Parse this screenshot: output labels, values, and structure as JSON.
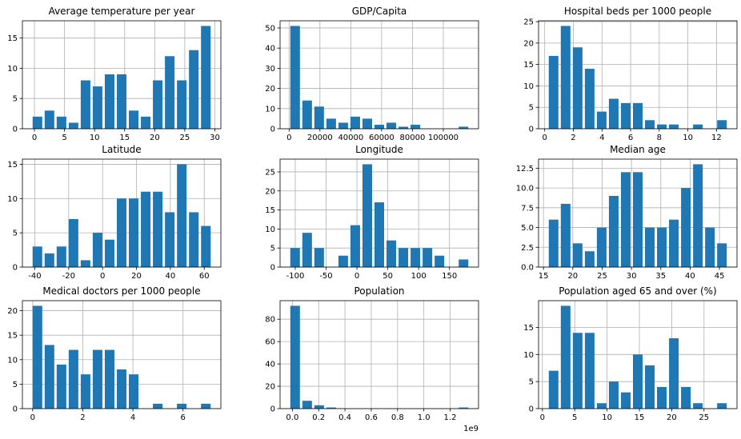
{
  "chart_data": [
    {
      "type": "histogram",
      "title": "Average temperature per year",
      "color": "#1f77b4",
      "grid": true,
      "bins": [
        -0.5,
        1.5,
        3.5,
        5.5,
        7.5,
        9.5,
        11.5,
        13.5,
        15.5,
        17.5,
        19.5,
        21.5,
        23.5,
        25.5,
        27.5,
        29.5
      ],
      "values": [
        2,
        3,
        2,
        1,
        8,
        7,
        9,
        9,
        3,
        2,
        8,
        12,
        8,
        13,
        17
      ],
      "xlim": [
        -2,
        31
      ],
      "xticks": [
        0,
        5,
        10,
        15,
        20,
        25,
        30
      ],
      "ylim": [
        0,
        17.85
      ],
      "yticks": [
        0,
        5,
        10,
        15
      ]
    },
    {
      "type": "histogram",
      "title": "GDP/Capita",
      "color": "#1f77b4",
      "grid": true,
      "bins": [
        0,
        7800,
        15600,
        23400,
        31200,
        39000,
        46800,
        54600,
        62400,
        70200,
        78000,
        85800,
        93600,
        101400,
        109200,
        117000
      ],
      "values": [
        51,
        14,
        11,
        5,
        3,
        6,
        5,
        2,
        3,
        1,
        2,
        0,
        0,
        0,
        1
      ],
      "xlim": [
        -5850,
        122850
      ],
      "xticks": [
        0,
        20000,
        40000,
        60000,
        80000,
        100000
      ],
      "ylim": [
        0,
        53.55
      ],
      "yticks": [
        0,
        10,
        20,
        30,
        40,
        50
      ]
    },
    {
      "type": "histogram",
      "title": "Hospital beds per 1000 people",
      "color": "#1f77b4",
      "grid": true,
      "bins": [
        0.2,
        1.04,
        1.88,
        2.72,
        3.56,
        4.4,
        5.24,
        6.08,
        6.92,
        7.76,
        8.6,
        9.44,
        10.28,
        11.12,
        11.96,
        12.8
      ],
      "values": [
        17,
        24,
        19,
        14,
        4,
        7,
        6,
        6,
        2,
        1,
        1,
        0,
        1,
        0,
        2
      ],
      "xlim": [
        -0.43,
        13.43
      ],
      "xticks": [
        0,
        2,
        4,
        6,
        8,
        10,
        12
      ],
      "ylim": [
        0,
        25.2
      ],
      "yticks": [
        0,
        5,
        10,
        15,
        20,
        25
      ]
    },
    {
      "type": "histogram",
      "title": "Latitude",
      "color": "#1f77b4",
      "grid": true,
      "bins": [
        -42,
        -34.9,
        -27.8,
        -20.7,
        -13.6,
        -6.5,
        0.6,
        7.7,
        14.8,
        21.9,
        29,
        36.1,
        43.2,
        50.3,
        57.4,
        64.5
      ],
      "values": [
        3,
        2,
        3,
        7,
        1,
        5,
        4,
        10,
        10,
        11,
        11,
        8,
        15,
        8,
        6
      ],
      "xlim": [
        -47.3,
        69.8
      ],
      "xticks": [
        -40,
        -20,
        0,
        20,
        40,
        60
      ],
      "ylim": [
        0,
        15.75
      ],
      "yticks": [
        0,
        5,
        10,
        15
      ]
    },
    {
      "type": "histogram",
      "title": "Longitude",
      "color": "#1f77b4",
      "grid": true,
      "bins": [
        -110,
        -90.5,
        -71,
        -51.5,
        -32,
        -12.5,
        7,
        26.5,
        46,
        65.5,
        85,
        104.5,
        124,
        143.5,
        163,
        182.5
      ],
      "values": [
        5,
        9,
        5,
        0,
        3,
        11,
        27,
        17,
        7,
        5,
        5,
        5,
        3,
        0,
        2
      ],
      "xlim": [
        -124.6,
        197.1
      ],
      "xticks": [
        -100,
        -50,
        0,
        50,
        100,
        150
      ],
      "ylim": [
        0,
        28.35
      ],
      "yticks": [
        0,
        5,
        10,
        15,
        20,
        25
      ]
    },
    {
      "type": "histogram",
      "title": "Median age",
      "color": "#1f77b4",
      "grid": true,
      "bins": [
        15.7,
        17.75,
        19.8,
        21.85,
        23.9,
        25.95,
        28,
        30.05,
        32.1,
        34.15,
        36.2,
        38.25,
        40.3,
        42.35,
        44.4,
        46.45
      ],
      "values": [
        6,
        8,
        3,
        2,
        5,
        9,
        12,
        12,
        5,
        5,
        6,
        10,
        13,
        5,
        3
      ],
      "xlim": [
        14.16,
        47.99
      ],
      "xticks": [
        15,
        20,
        25,
        30,
        35,
        40,
        45
      ],
      "ylim": [
        0,
        13.65
      ],
      "yticks": [
        {
          "value": 0,
          "label": "0.0"
        },
        2.5,
        {
          "value": 5,
          "label": "5.0"
        },
        7.5,
        {
          "value": 10,
          "label": "10.0"
        },
        12.5
      ]
    },
    {
      "type": "histogram",
      "title": "Medical doctors per 1000 people",
      "color": "#1f77b4",
      "grid": true,
      "bins": [
        -0.05,
        0.43,
        0.91,
        1.39,
        1.87,
        2.35,
        2.83,
        3.31,
        3.79,
        4.27,
        4.75,
        5.23,
        5.71,
        6.19,
        6.67,
        7.15
      ],
      "values": [
        21,
        13,
        9,
        12,
        7,
        12,
        12,
        8,
        7,
        0,
        1,
        0,
        1,
        0,
        1
      ],
      "xlim": [
        -0.41,
        7.51
      ],
      "xticks": [
        0,
        2,
        4,
        6
      ],
      "ylim": [
        0,
        22.05
      ],
      "yticks": [
        0,
        5,
        10,
        15,
        20
      ]
    },
    {
      "type": "histogram",
      "title": "Population",
      "color": "#1f77b4",
      "grid": true,
      "bins": [
        -0.025,
        0.0665,
        0.158,
        0.2495,
        0.341,
        0.4325,
        0.524,
        0.6155,
        0.707,
        0.7985,
        0.89,
        0.9815,
        1.073,
        1.1645,
        1.256,
        1.3475
      ],
      "values": [
        92,
        7,
        3,
        1,
        0,
        0,
        0,
        0,
        0,
        0,
        0,
        0,
        0,
        0,
        1
      ],
      "xlim": [
        -0.0936,
        1.416
      ],
      "xticks": [
        {
          "value": 0,
          "label": "0.0"
        },
        0.2,
        0.4,
        0.6,
        0.8,
        {
          "value": 1,
          "label": "1.0"
        },
        1.2
      ],
      "x_offset_label": "1e9",
      "ylim": [
        0,
        96.6
      ],
      "yticks": [
        0,
        20,
        40,
        60,
        80
      ]
    },
    {
      "type": "histogram",
      "title": "Population aged 65 and over (%)",
      "color": "#1f77b4",
      "grid": true,
      "bins": [
        0.8,
        2.66,
        4.52,
        6.38,
        8.24,
        10.1,
        11.96,
        13.82,
        15.68,
        17.54,
        19.4,
        21.26,
        23.12,
        24.98,
        26.84,
        28.7
      ],
      "values": [
        7,
        19,
        14,
        14,
        1,
        5,
        3,
        10,
        8,
        4,
        13,
        4,
        1,
        0,
        1
      ],
      "xlim": [
        -0.6,
        30.1
      ],
      "xticks": [
        0,
        5,
        10,
        15,
        20,
        25
      ],
      "ylim": [
        0,
        19.95
      ],
      "yticks": [
        0,
        5,
        10,
        15
      ]
    }
  ]
}
